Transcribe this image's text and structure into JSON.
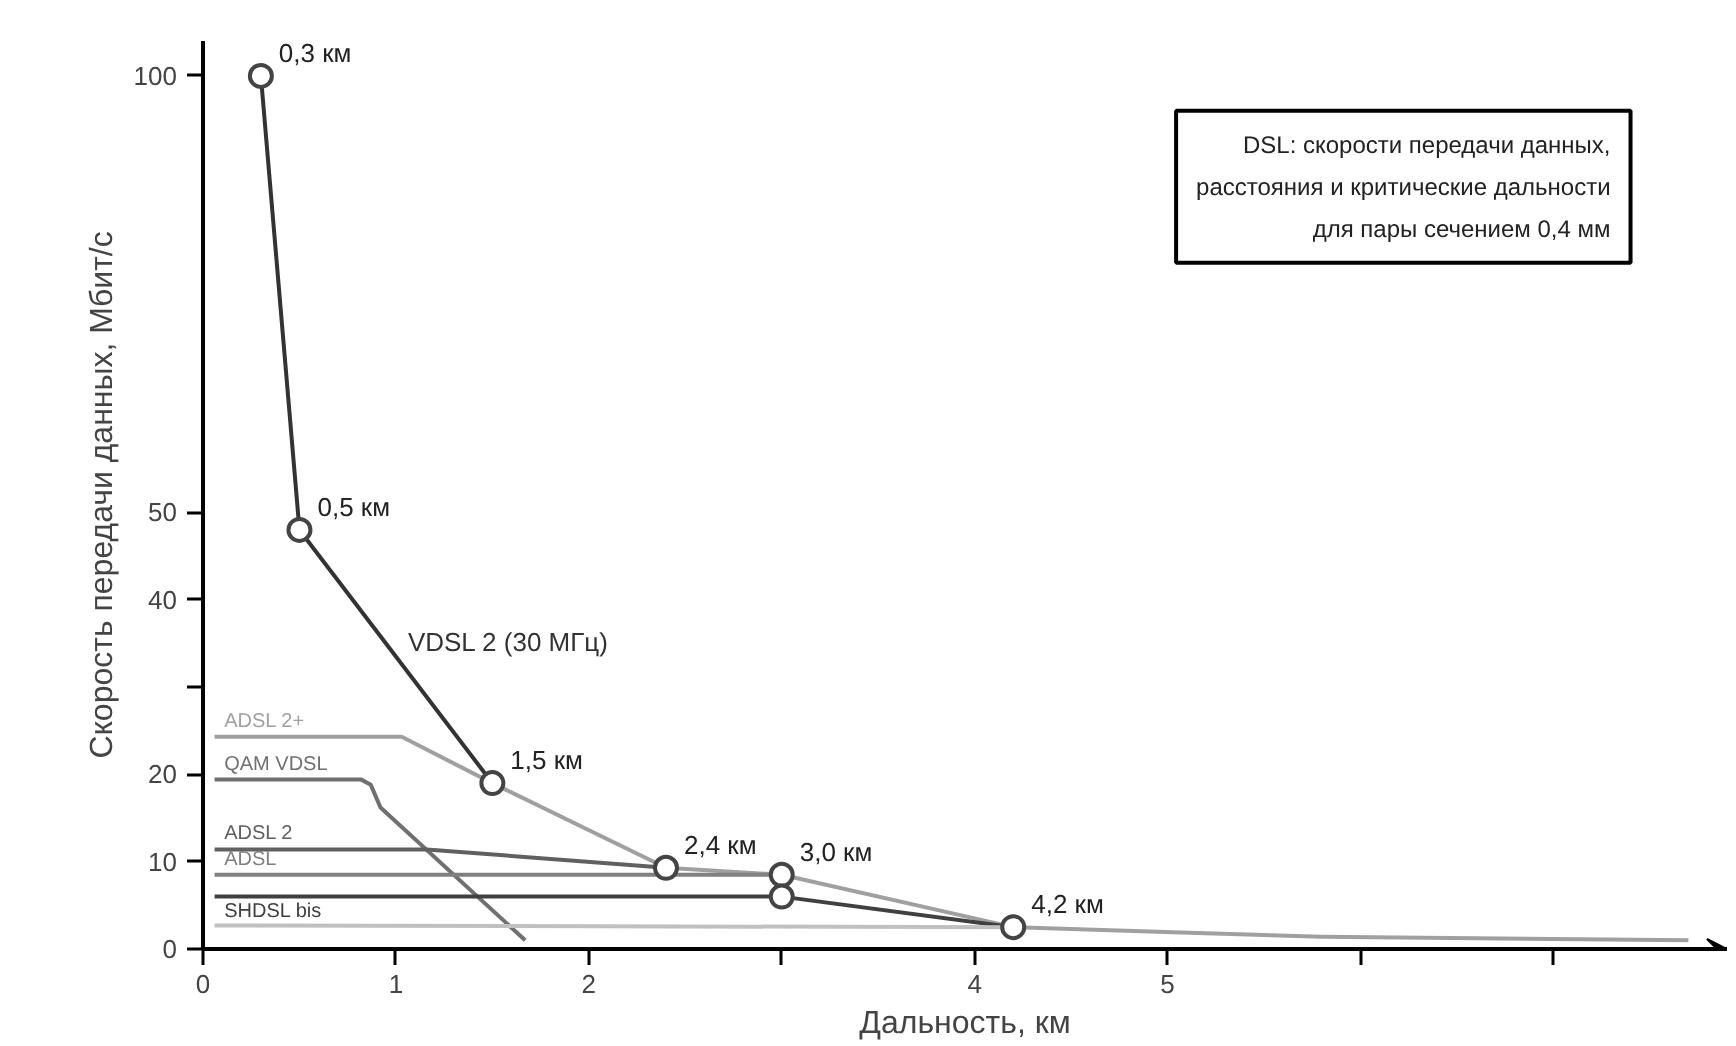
{
  "chart_data": {
    "type": "line",
    "xlabel": "Дальность, км",
    "ylabel": "Скорость передачи данных, Мбит/с",
    "xlim": [
      0,
      7.9
    ],
    "ylim": [
      0,
      104
    ],
    "xticks": [
      0,
      1,
      2,
      {
        "value": 3,
        "label": null
      },
      4,
      5,
      {
        "value": 6,
        "label": null
      },
      {
        "value": 7,
        "label": null
      }
    ],
    "yticks": [
      0,
      10,
      20,
      {
        "value": 30,
        "label": null
      },
      40,
      50,
      100
    ],
    "grid": false,
    "series": [
      {
        "name": "VDSL 2 (30 МГц)",
        "color": "#333333",
        "x": [
          0.3,
          0.5,
          1.5
        ],
        "values": [
          100,
          48,
          19
        ]
      },
      {
        "name": "ADSL 2+",
        "color": "#a0a0a0",
        "x": [
          0.06,
          1.03,
          1.5,
          2.4,
          3.0,
          4.2,
          5.07,
          5.8,
          7.7
        ],
        "values": [
          24.3,
          24.3,
          19,
          9.3,
          8.5,
          2.5,
          1.9,
          1.4,
          1.0
        ]
      },
      {
        "name": "QAM VDSL",
        "color": "#707070",
        "x": [
          0.06,
          0.82,
          0.87,
          0.92,
          1.67
        ],
        "values": [
          19.4,
          19.4,
          18.8,
          16.2,
          1.0
        ]
      },
      {
        "name": "ADSL 2",
        "color": "#606060",
        "x": [
          0.06,
          1.16,
          2.4
        ],
        "values": [
          11.4,
          11.4,
          9.3
        ]
      },
      {
        "name": "ADSL",
        "color": "#808080",
        "x": [
          0.06,
          3.0
        ],
        "values": [
          8.5,
          8.5
        ]
      },
      {
        "name": "SHDSL bis",
        "color": "#404040",
        "x": [
          0.06,
          3.0,
          4.2
        ],
        "values": [
          6.0,
          6.0,
          2.5
        ]
      },
      {
        "color": "#c0c0c0",
        "x": [
          0.06,
          4.2
        ],
        "values": [
          2.7,
          2.5
        ]
      },
      {
        "type": "scatter",
        "marker": "circle",
        "color": "#444444",
        "x": [
          0.3,
          0.5,
          1.5,
          2.4,
          3.0,
          3.0,
          4.2
        ],
        "values": [
          100,
          48,
          19,
          9.3,
          8.5,
          6.0,
          2.5
        ]
      }
    ],
    "annotations": [
      {
        "text": "0,3 км",
        "x": 0.3,
        "y": 100
      },
      {
        "text": "0,5 км",
        "x": 0.5,
        "y": 48
      },
      {
        "text": "1,5 км",
        "x": 1.5,
        "y": 19
      },
      {
        "text": "2,4 км",
        "x": 2.4,
        "y": 9.3
      },
      {
        "text": "3,0 км",
        "x": 3.0,
        "y": 8.5
      },
      {
        "text": "4,2 км",
        "x": 4.2,
        "y": 2.5
      },
      "DSL: скорости передачи данных,\nрасстояния и критические дальности\nдля пары сечением 0,4 мм"
    ]
  }
}
